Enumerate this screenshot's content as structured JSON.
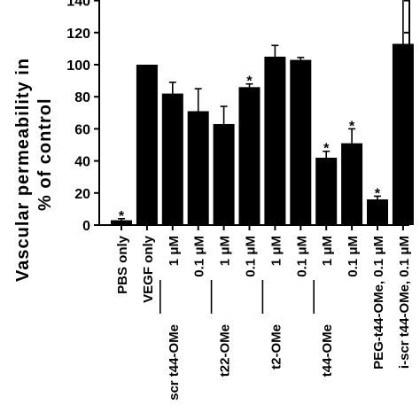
{
  "chart_data": {
    "type": "bar",
    "ylabel_line1": "Vascular   permeability   in",
    "ylabel_line2": "%   of   control",
    "ylim": [
      0,
      140
    ],
    "yticks": [
      0,
      20,
      40,
      60,
      80,
      100,
      120,
      140
    ],
    "grid": false,
    "categories": [
      {
        "label": "PBS only",
        "value": 3,
        "error": 1,
        "star": true
      },
      {
        "label": "VEGF only",
        "value": 100,
        "error": 0,
        "star": false
      },
      {
        "label": "1 μM",
        "value": 82,
        "error": 7,
        "star": false
      },
      {
        "label": "0.1 μM",
        "value": 71,
        "error": 14,
        "star": false
      },
      {
        "label": "1 μM",
        "value": 63,
        "error": 11,
        "star": false
      },
      {
        "label": "0.1 μM",
        "value": 86,
        "error": 2,
        "star": true
      },
      {
        "label": "1 μM",
        "value": 105,
        "error": 7,
        "star": false
      },
      {
        "label": "0.1 μM",
        "value": 103,
        "error": 1.5,
        "star": false
      },
      {
        "label": "1 μM",
        "value": 42,
        "error": 4,
        "star": true
      },
      {
        "label": "0.1 μM",
        "value": 51,
        "error": 9,
        "star": true
      },
      {
        "label": "PEG-t44-OMe, 0.1 μM",
        "value": 16,
        "error": 2,
        "star": true
      },
      {
        "label": "",
        "value": 113,
        "error": 28,
        "star": false
      }
    ],
    "groups": [
      {
        "label": "scr t44-OMe",
        "from": 2,
        "to": 3
      },
      {
        "label": "t22-OMe",
        "from": 4,
        "to": 5
      },
      {
        "label": "t2-OMe",
        "from": 6,
        "to": 7
      },
      {
        "label": "t44-OMe",
        "from": 8,
        "to": 9
      }
    ],
    "partial_label": "i-scr t44-OMe, 0.1 μM",
    "star_symbol": "*"
  }
}
